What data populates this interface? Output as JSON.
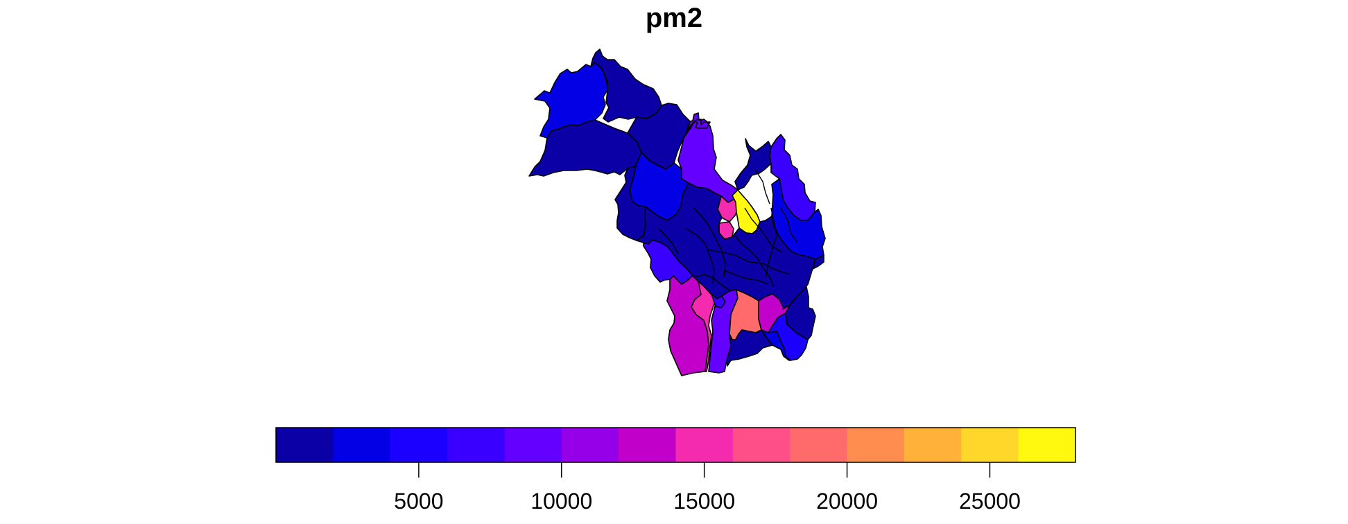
{
  "title": "pm2",
  "legend": {
    "breaks": [
      0,
      2000,
      4000,
      6000,
      8000,
      10000,
      12000,
      14000,
      16000,
      18000,
      20000,
      22000,
      24000,
      26000,
      28000
    ],
    "colors": [
      "#0A00A6",
      "#0300E6",
      "#1C00FF",
      "#3A00FF",
      "#6300FF",
      "#9600E8",
      "#C100CA",
      "#F42AAF",
      "#FF4F89",
      "#FF6B6B",
      "#FF8D4F",
      "#FFB13A",
      "#FFD62A",
      "#FFF90F"
    ],
    "tick_values": [
      5000,
      10000,
      15000,
      20000,
      25000
    ],
    "tick_labels": [
      "5000",
      "10000",
      "15000",
      "20000",
      "25000"
    ]
  },
  "map": {
    "border_color": "#000000",
    "region_classes": [
      {
        "name": "northwest-region",
        "class": 2
      },
      {
        "name": "north-upper-region",
        "class": 1
      },
      {
        "name": "west-region",
        "class": 1
      },
      {
        "name": "north-central-region",
        "class": 1
      },
      {
        "name": "north-purple-region",
        "class": 5
      },
      {
        "name": "central-blue-region",
        "class": 2
      },
      {
        "name": "west-lower-region",
        "class": 1
      },
      {
        "name": "southwest-region",
        "class": 4
      },
      {
        "name": "central-pink-region",
        "class": 8
      },
      {
        "name": "central-small-pink-region",
        "class": 8
      },
      {
        "name": "yellow-hotspot-region",
        "class": 14
      },
      {
        "name": "northeast-upper-region",
        "class": 1
      },
      {
        "name": "northeast-region",
        "class": 4
      },
      {
        "name": "east-region",
        "class": 2
      },
      {
        "name": "east-lower-region",
        "class": 1
      },
      {
        "name": "central-core-region",
        "class": 1
      },
      {
        "name": "central-east-region",
        "class": 2
      },
      {
        "name": "south-magenta-region",
        "class": 7
      },
      {
        "name": "south-pink-region",
        "class": 8
      },
      {
        "name": "south-purple-region",
        "class": 5
      },
      {
        "name": "south-salmon-region",
        "class": 10
      },
      {
        "name": "south-magenta-east-region",
        "class": 7
      },
      {
        "name": "southeast-region",
        "class": 3
      },
      {
        "name": "south-bottom-region",
        "class": 1
      },
      {
        "name": "south-central-small-region",
        "class": 4
      }
    ]
  }
}
